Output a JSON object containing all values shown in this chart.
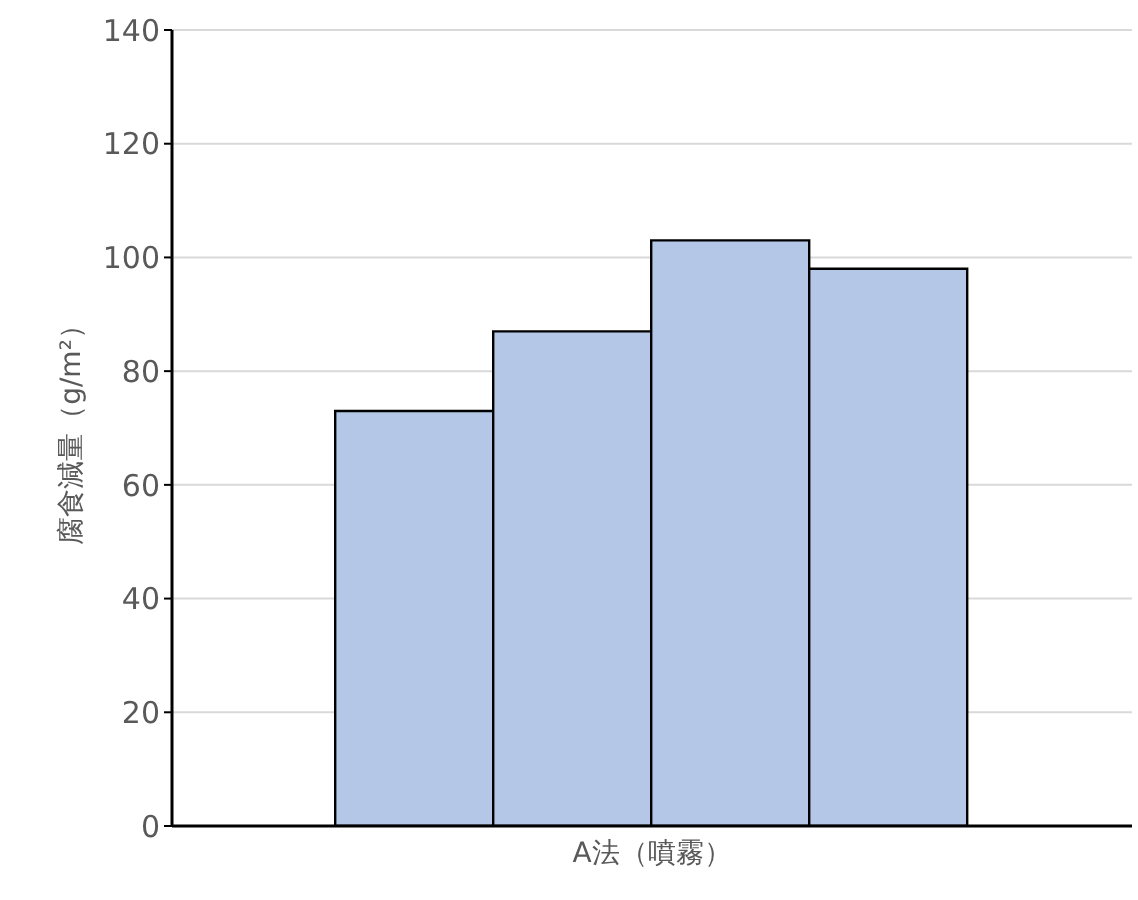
{
  "chart_data": {
    "type": "bar",
    "categories": [
      "A法（噴霧）"
    ],
    "series": [
      {
        "color": "#b4c7e7",
        "values": [
          73
        ]
      },
      {
        "color": "#b4c7e7",
        "values": [
          87
        ]
      },
      {
        "color": "#b4c7e7",
        "values": [
          103
        ]
      },
      {
        "color": "#b4c7e7",
        "values": [
          98
        ]
      }
    ],
    "ylabel": "腐食減量（g/m²）",
    "ylim": [
      0,
      140
    ],
    "yticks": [
      0,
      20,
      40,
      60,
      80,
      100,
      120,
      140
    ],
    "grid": "y",
    "legend": false
  }
}
